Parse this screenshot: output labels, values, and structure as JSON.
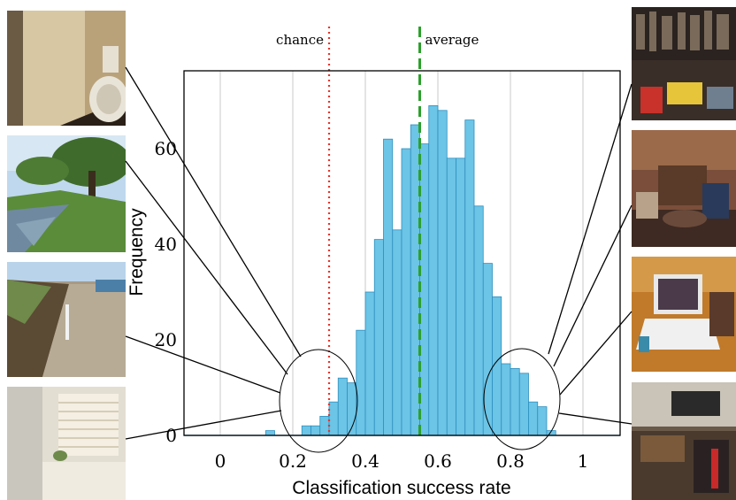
{
  "chart_data": {
    "type": "bar",
    "xlabel": "Classification success rate",
    "ylabel": "Frequency",
    "xlim": [
      -0.1,
      1.1
    ],
    "ylim": [
      0,
      75
    ],
    "xticks": [
      "0",
      "0.2",
      "0.4",
      "0.6",
      "0.8",
      "1"
    ],
    "yticks": [
      "0",
      "20",
      "40",
      "60"
    ],
    "grid": "vertical",
    "bin_width": 0.025,
    "bins": [
      {
        "x": 0.125,
        "y": 1
      },
      {
        "x": 0.225,
        "y": 2
      },
      {
        "x": 0.25,
        "y": 2
      },
      {
        "x": 0.275,
        "y": 4
      },
      {
        "x": 0.3,
        "y": 7
      },
      {
        "x": 0.325,
        "y": 12
      },
      {
        "x": 0.35,
        "y": 11
      },
      {
        "x": 0.375,
        "y": 22
      },
      {
        "x": 0.4,
        "y": 30
      },
      {
        "x": 0.425,
        "y": 41
      },
      {
        "x": 0.45,
        "y": 62
      },
      {
        "x": 0.475,
        "y": 43
      },
      {
        "x": 0.5,
        "y": 60
      },
      {
        "x": 0.525,
        "y": 65
      },
      {
        "x": 0.55,
        "y": 61
      },
      {
        "x": 0.575,
        "y": 69
      },
      {
        "x": 0.6,
        "y": 68
      },
      {
        "x": 0.625,
        "y": 58
      },
      {
        "x": 0.65,
        "y": 58
      },
      {
        "x": 0.675,
        "y": 66
      },
      {
        "x": 0.7,
        "y": 48
      },
      {
        "x": 0.725,
        "y": 36
      },
      {
        "x": 0.75,
        "y": 29
      },
      {
        "x": 0.775,
        "y": 15
      },
      {
        "x": 0.8,
        "y": 14
      },
      {
        "x": 0.825,
        "y": 13
      },
      {
        "x": 0.85,
        "y": 7
      },
      {
        "x": 0.875,
        "y": 6
      },
      {
        "x": 0.9,
        "y": 1
      }
    ],
    "reference_lines": [
      {
        "label": "chance",
        "x": 0.3,
        "style": "dotted",
        "color": "#e8332a"
      },
      {
        "label": "average",
        "x": 0.55,
        "style": "dashed",
        "color": "#2ca02c"
      }
    ],
    "bar_color": "#6cc4e6",
    "bar_edge": "#2f8fbf"
  },
  "thumbnails": {
    "left": [
      "bathroom-corner-photo",
      "lakeside-park-photo",
      "gravel-path-photo",
      "bathroom-bathtub-photo"
    ],
    "right": [
      "cluttered-shop-photo",
      "messy-room-photo",
      "laptop-desk-photo",
      "stereo-shelf-photo"
    ]
  }
}
